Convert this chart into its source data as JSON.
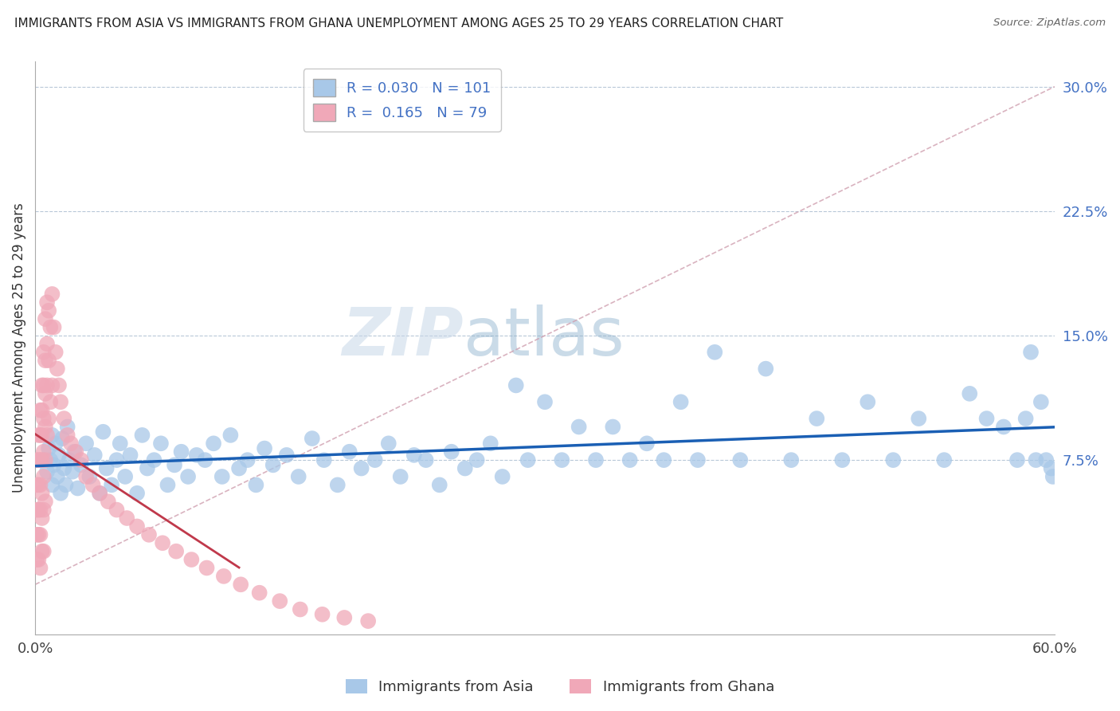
{
  "title": "IMMIGRANTS FROM ASIA VS IMMIGRANTS FROM GHANA UNEMPLOYMENT AMONG AGES 25 TO 29 YEARS CORRELATION CHART",
  "source": "Source: ZipAtlas.com",
  "ylabel": "Unemployment Among Ages 25 to 29 years",
  "xlim": [
    0.0,
    0.6
  ],
  "ylim": [
    -0.03,
    0.315
  ],
  "yticks": [
    0.075,
    0.15,
    0.225,
    0.3
  ],
  "ytick_labels": [
    "7.5%",
    "15.0%",
    "22.5%",
    "30.0%"
  ],
  "xticks": [
    0.0,
    0.6
  ],
  "xtick_labels": [
    "0.0%",
    "60.0%"
  ],
  "asia_color": "#a8c8e8",
  "ghana_color": "#f0a8b8",
  "asia_line_color": "#1a5fb4",
  "ghana_line_color": "#c0394b",
  "diag_line_color": "#d0a0b0",
  "R_asia": 0.03,
  "N_asia": 101,
  "R_ghana": 0.165,
  "N_ghana": 79,
  "watermark_zip": "ZIP",
  "watermark_atlas": "atlas",
  "legend_label_asia": "Immigrants from Asia",
  "legend_label_ghana": "Immigrants from Ghana",
  "asia_scatter_x": [
    0.005,
    0.007,
    0.008,
    0.009,
    0.01,
    0.01,
    0.011,
    0.012,
    0.013,
    0.014,
    0.015,
    0.016,
    0.017,
    0.018,
    0.019,
    0.02,
    0.022,
    0.023,
    0.025,
    0.027,
    0.03,
    0.032,
    0.035,
    0.038,
    0.04,
    0.042,
    0.045,
    0.048,
    0.05,
    0.053,
    0.056,
    0.06,
    0.063,
    0.066,
    0.07,
    0.074,
    0.078,
    0.082,
    0.086,
    0.09,
    0.095,
    0.1,
    0.105,
    0.11,
    0.115,
    0.12,
    0.125,
    0.13,
    0.135,
    0.14,
    0.148,
    0.155,
    0.163,
    0.17,
    0.178,
    0.185,
    0.192,
    0.2,
    0.208,
    0.215,
    0.223,
    0.23,
    0.238,
    0.245,
    0.253,
    0.26,
    0.268,
    0.275,
    0.283,
    0.29,
    0.3,
    0.31,
    0.32,
    0.33,
    0.34,
    0.35,
    0.36,
    0.37,
    0.38,
    0.39,
    0.4,
    0.415,
    0.43,
    0.445,
    0.46,
    0.475,
    0.49,
    0.505,
    0.52,
    0.535,
    0.55,
    0.56,
    0.57,
    0.578,
    0.583,
    0.586,
    0.589,
    0.592,
    0.595,
    0.598,
    0.599
  ],
  "asia_scatter_y": [
    0.075,
    0.068,
    0.082,
    0.075,
    0.09,
    0.06,
    0.072,
    0.085,
    0.065,
    0.078,
    0.055,
    0.088,
    0.07,
    0.06,
    0.095,
    0.075,
    0.068,
    0.08,
    0.058,
    0.072,
    0.085,
    0.065,
    0.078,
    0.055,
    0.092,
    0.07,
    0.06,
    0.075,
    0.085,
    0.065,
    0.078,
    0.055,
    0.09,
    0.07,
    0.075,
    0.085,
    0.06,
    0.072,
    0.08,
    0.065,
    0.078,
    0.075,
    0.085,
    0.065,
    0.09,
    0.07,
    0.075,
    0.06,
    0.082,
    0.072,
    0.078,
    0.065,
    0.088,
    0.075,
    0.06,
    0.08,
    0.07,
    0.075,
    0.085,
    0.065,
    0.078,
    0.075,
    0.06,
    0.08,
    0.07,
    0.075,
    0.085,
    0.065,
    0.12,
    0.075,
    0.11,
    0.075,
    0.095,
    0.075,
    0.095,
    0.075,
    0.085,
    0.075,
    0.11,
    0.075,
    0.14,
    0.075,
    0.13,
    0.075,
    0.1,
    0.075,
    0.11,
    0.075,
    0.1,
    0.075,
    0.115,
    0.1,
    0.095,
    0.075,
    0.1,
    0.14,
    0.075,
    0.11,
    0.075,
    0.07,
    0.065
  ],
  "ghana_scatter_x": [
    0.001,
    0.001,
    0.001,
    0.001,
    0.001,
    0.002,
    0.002,
    0.002,
    0.002,
    0.002,
    0.002,
    0.003,
    0.003,
    0.003,
    0.003,
    0.003,
    0.003,
    0.003,
    0.004,
    0.004,
    0.004,
    0.004,
    0.004,
    0.004,
    0.004,
    0.005,
    0.005,
    0.005,
    0.005,
    0.005,
    0.005,
    0.005,
    0.006,
    0.006,
    0.006,
    0.006,
    0.006,
    0.006,
    0.007,
    0.007,
    0.007,
    0.007,
    0.008,
    0.008,
    0.008,
    0.009,
    0.009,
    0.01,
    0.01,
    0.011,
    0.012,
    0.013,
    0.014,
    0.015,
    0.017,
    0.019,
    0.021,
    0.024,
    0.027,
    0.03,
    0.034,
    0.038,
    0.043,
    0.048,
    0.054,
    0.06,
    0.067,
    0.075,
    0.083,
    0.092,
    0.101,
    0.111,
    0.121,
    0.132,
    0.144,
    0.156,
    0.169,
    0.182,
    0.196
  ],
  "ghana_scatter_y": [
    0.075,
    0.06,
    0.045,
    0.03,
    0.015,
    0.09,
    0.075,
    0.06,
    0.045,
    0.03,
    0.015,
    0.105,
    0.09,
    0.075,
    0.06,
    0.045,
    0.03,
    0.01,
    0.12,
    0.105,
    0.09,
    0.075,
    0.055,
    0.04,
    0.02,
    0.14,
    0.12,
    0.1,
    0.08,
    0.065,
    0.045,
    0.02,
    0.16,
    0.135,
    0.115,
    0.095,
    0.075,
    0.05,
    0.17,
    0.145,
    0.12,
    0.09,
    0.165,
    0.135,
    0.1,
    0.155,
    0.11,
    0.175,
    0.12,
    0.155,
    0.14,
    0.13,
    0.12,
    0.11,
    0.1,
    0.09,
    0.085,
    0.08,
    0.075,
    0.065,
    0.06,
    0.055,
    0.05,
    0.045,
    0.04,
    0.035,
    0.03,
    0.025,
    0.02,
    0.015,
    0.01,
    0.005,
    0.0,
    -0.005,
    -0.01,
    -0.015,
    -0.018,
    -0.02,
    -0.022
  ]
}
